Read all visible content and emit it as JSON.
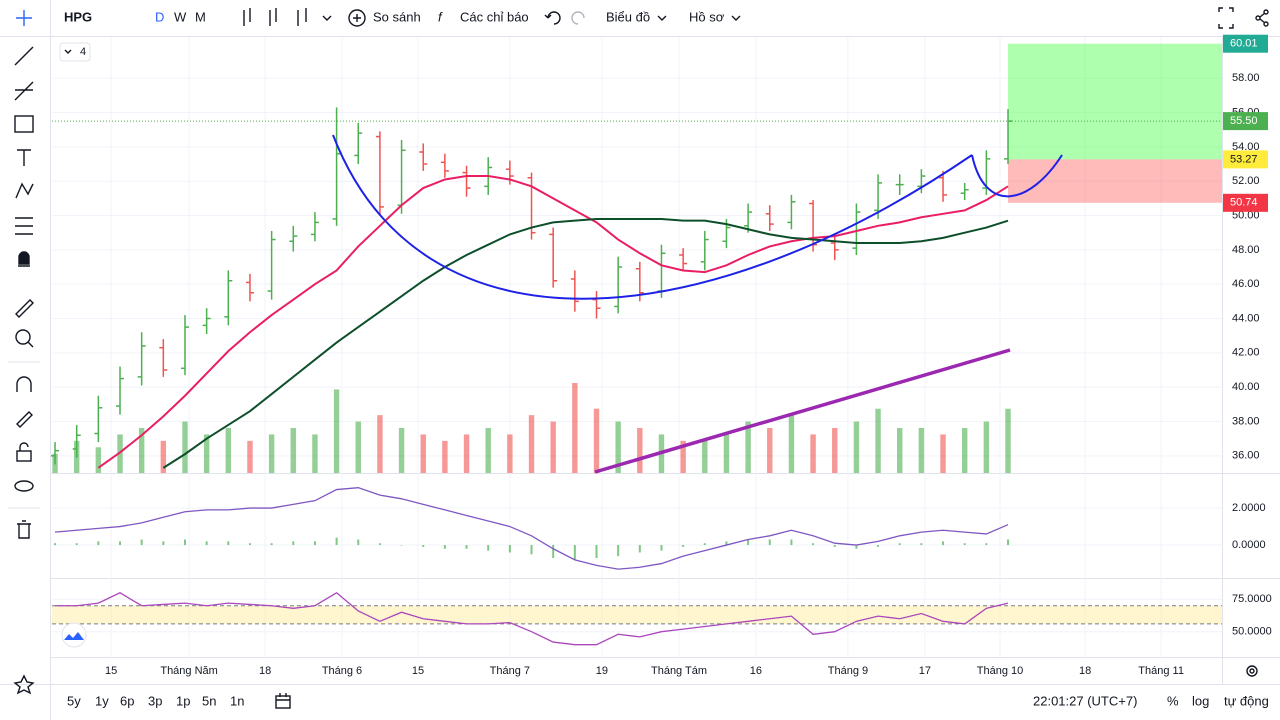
{
  "ui": {
    "symbol": "HPG",
    "intervals": [
      "D",
      "W",
      "M"
    ],
    "compare": "So sánh",
    "indicators": "Các chỉ báo",
    "chart_menu": "Biểu đồ",
    "profile": "Hồ sơ",
    "legend_count": 4,
    "ranges": [
      "5y",
      "1y",
      "6p",
      "3p",
      "1p",
      "5n",
      "1n"
    ],
    "clock": "22:01:27 (UTC+7)",
    "percent": "%",
    "log": "log",
    "auto": "tự động"
  },
  "chart_data": {
    "type": "ohlc",
    "up_color": "#4caf50",
    "down_color": "#ef5350",
    "open": [
      36.0,
      36.4,
      37.3,
      38.9,
      40.6,
      42.3,
      41.1,
      43.6,
      44.1,
      46.1,
      45.6,
      48.5,
      48.9,
      49.8,
      53.5,
      54.6,
      50.6,
      53.7,
      53.1,
      52.5,
      51.7,
      52.7,
      52.2,
      48.9,
      46.3,
      45.1,
      44.7,
      46.9,
      45.6,
      47.7,
      47.3,
      48.5,
      49.4,
      50.1,
      49.6,
      50.7,
      48.4,
      48.1,
      50.3,
      51.8,
      51.7,
      52.2,
      51.3,
      51.6,
      53.3
    ],
    "high": [
      36.8,
      37.8,
      39.5,
      41.2,
      43.2,
      42.8,
      44.2,
      44.6,
      46.8,
      46.6,
      49.1,
      49.4,
      50.2,
      56.3,
      55.4,
      54.9,
      54.4,
      54.2,
      53.6,
      52.9,
      53.4,
      53.2,
      52.5,
      49.3,
      46.8,
      45.6,
      47.6,
      47.3,
      48.3,
      48.1,
      49.1,
      49.8,
      50.7,
      50.6,
      51.2,
      50.9,
      48.8,
      50.7,
      52.4,
      52.4,
      52.7,
      52.6,
      51.9,
      53.8,
      56.2
    ],
    "low": [
      35.5,
      35.9,
      36.8,
      38.4,
      40.1,
      40.6,
      40.7,
      43.1,
      43.6,
      45.0,
      45.1,
      47.9,
      48.5,
      49.4,
      53.0,
      50.0,
      50.1,
      52.6,
      52.2,
      51.1,
      51.2,
      51.8,
      48.6,
      45.8,
      44.4,
      44.0,
      44.3,
      45.0,
      45.2,
      46.8,
      46.8,
      48.1,
      49.0,
      49.1,
      49.2,
      47.9,
      47.4,
      47.7,
      49.8,
      51.2,
      51.3,
      50.8,
      50.9,
      51.2,
      53.0
    ],
    "close": [
      36.3,
      37.2,
      38.8,
      40.5,
      42.4,
      41.0,
      43.5,
      44.0,
      46.2,
      45.5,
      48.6,
      48.8,
      49.6,
      53.6,
      54.8,
      50.5,
      53.8,
      53.0,
      52.6,
      51.6,
      52.8,
      52.3,
      49.0,
      46.2,
      45.0,
      44.6,
      47.0,
      45.5,
      47.8,
      47.2,
      48.6,
      49.3,
      50.2,
      49.5,
      50.8,
      48.3,
      48.0,
      50.2,
      51.9,
      51.8,
      52.3,
      51.2,
      51.5,
      53.3,
      55.5
    ],
    "volume": [
      3,
      5,
      4,
      6,
      7,
      5,
      8,
      6,
      7,
      5,
      6,
      7,
      6,
      13,
      8,
      9,
      7,
      6,
      5,
      6,
      7,
      6,
      9,
      8,
      14,
      10,
      8,
      7,
      6,
      5,
      5,
      6,
      8,
      7,
      9,
      6,
      7,
      8,
      10,
      7,
      7,
      6,
      7,
      8,
      10
    ],
    "moving_averages": [
      {
        "color": "#e91e63",
        "values": [
          null,
          null,
          35.3,
          36.2,
          37.2,
          38.3,
          39.5,
          40.8,
          42.1,
          43.2,
          44.2,
          45.1,
          46.0,
          46.8,
          48.2,
          49.4,
          50.6,
          51.6,
          52.1,
          52.3,
          52.3,
          52.1,
          51.7,
          51.0,
          50.3,
          49.6,
          48.6,
          47.8,
          47.1,
          46.8,
          46.7,
          47.1,
          47.7,
          48.2,
          48.5,
          48.7,
          48.8,
          49.1,
          49.4,
          49.6,
          49.9,
          50.1,
          50.3,
          50.9,
          51.7
        ]
      },
      {
        "color": "#0d4f2b",
        "values": [
          null,
          null,
          null,
          null,
          null,
          35.3,
          36.1,
          37.0,
          37.8,
          38.6,
          39.6,
          40.6,
          41.6,
          42.6,
          43.5,
          44.4,
          45.3,
          46.2,
          47.0,
          47.7,
          48.3,
          48.9,
          49.3,
          49.6,
          49.7,
          49.8,
          49.8,
          49.8,
          49.8,
          49.7,
          49.7,
          49.5,
          49.2,
          48.9,
          48.7,
          48.6,
          48.5,
          48.4,
          48.4,
          48.4,
          48.5,
          48.7,
          49.0,
          49.3,
          49.7
        ]
      }
    ],
    "xlim": [
      -0.14,
      53.88
    ],
    "ylim": [
      35.0,
      60.4
    ],
    "yticks": [
      {
        "value": 36,
        "label": "36.00"
      },
      {
        "value": 38,
        "label": "38.00"
      },
      {
        "value": 40,
        "label": "40.00"
      },
      {
        "value": 42,
        "label": "42.00"
      },
      {
        "value": 44,
        "label": "44.00"
      },
      {
        "value": 46,
        "label": "46.00"
      },
      {
        "value": 48,
        "label": "48.00"
      },
      {
        "value": 50,
        "label": "50.00"
      },
      {
        "value": 52,
        "label": "52.00"
      },
      {
        "value": 54,
        "label": "54.00"
      },
      {
        "value": 56,
        "label": "56.00"
      },
      {
        "value": 58,
        "label": "58.00"
      }
    ],
    "xticks": [
      {
        "value": 2.59,
        "label": "15"
      },
      {
        "value": 6.19,
        "label": "Tháng Năm"
      },
      {
        "value": 9.7,
        "label": "18"
      },
      {
        "value": 13.25,
        "label": "Tháng 6"
      },
      {
        "value": 16.76,
        "label": "15"
      },
      {
        "value": 21.0,
        "label": "Tháng 7"
      },
      {
        "value": 25.25,
        "label": "19"
      },
      {
        "value": 28.81,
        "label": "Tháng Tám"
      },
      {
        "value": 32.36,
        "label": "16"
      },
      {
        "value": 36.61,
        "label": "Tháng 9"
      },
      {
        "value": 40.16,
        "label": "17"
      },
      {
        "value": 43.63,
        "label": "Tháng 10"
      },
      {
        "value": 47.56,
        "label": "18"
      },
      {
        "value": 51.07,
        "label": "Tháng 11"
      }
    ],
    "price_markers": [
      {
        "value": 60.01,
        "color": "#22ab94"
      },
      {
        "value": 55.5,
        "label": "55.50",
        "color": "#4caf50"
      },
      {
        "value": 53.27,
        "color": "#ffeb3b"
      },
      {
        "value": 50.74,
        "color": "#f23645"
      }
    ],
    "macd": {
      "line_color": "#7e57c2",
      "hist_color": "#4caf50",
      "line": [
        0.7,
        0.8,
        0.9,
        1.0,
        1.2,
        1.5,
        1.8,
        1.9,
        1.9,
        2.0,
        2.0,
        2.2,
        2.4,
        3.0,
        3.1,
        2.7,
        2.5,
        2.2,
        1.9,
        1.6,
        1.3,
        1.0,
        0.5,
        -0.2,
        -0.8,
        -1.1,
        -1.3,
        -1.2,
        -1.0,
        -0.6,
        -0.3,
        0.0,
        0.3,
        0.5,
        0.8,
        0.5,
        0.1,
        0.0,
        0.2,
        0.5,
        0.7,
        0.8,
        0.7,
        0.6,
        1.1
      ],
      "hist": [
        0.1,
        0.1,
        0.2,
        0.2,
        0.3,
        0.2,
        0.3,
        0.2,
        0.2,
        0.1,
        0.1,
        0.2,
        0.2,
        0.4,
        0.3,
        0.1,
        0.0,
        -0.1,
        -0.2,
        -0.2,
        -0.3,
        -0.4,
        -0.5,
        -0.7,
        -0.8,
        -0.7,
        -0.6,
        -0.4,
        -0.3,
        -0.1,
        0.1,
        0.2,
        0.3,
        0.3,
        0.3,
        0.1,
        -0.1,
        -0.2,
        -0.1,
        0.1,
        0.1,
        0.2,
        0.1,
        0.1,
        0.3
      ],
      "ylim": [
        -1.78,
        3.84
      ],
      "yticks": [
        {
          "value": 2,
          "label": "2.0000"
        },
        {
          "value": 0,
          "label": "0.0000"
        }
      ]
    },
    "rsi": {
      "color": "#ab47bc",
      "bands": [
        70,
        56
      ],
      "values": [
        70,
        70,
        72,
        80,
        70,
        71,
        72,
        70,
        72,
        71,
        70,
        68,
        70,
        80,
        66,
        58,
        65,
        60,
        58,
        56,
        56,
        57,
        50,
        42,
        40,
        40,
        48,
        46,
        50,
        52,
        54,
        56,
        58,
        60,
        62,
        48,
        50,
        58,
        62,
        60,
        64,
        58,
        56,
        68,
        72
      ],
      "ylim": [
        30.5,
        90.6
      ],
      "yticks": [
        {
          "value": 75,
          "label": "75.0000"
        },
        {
          "value": 50,
          "label": "50.0000"
        }
      ]
    }
  }
}
